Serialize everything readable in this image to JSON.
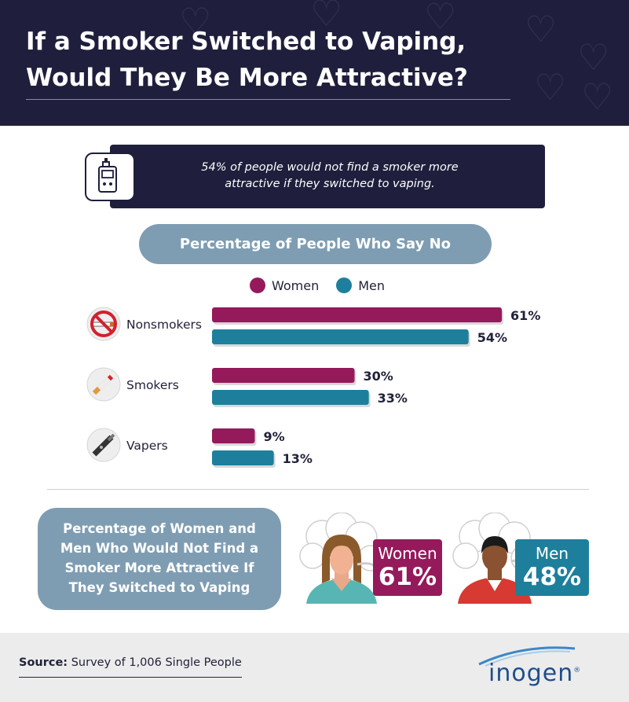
{
  "header": {
    "title_line1": "If a Smoker Switched to Vaping,",
    "title_line2": "Would They Be More Attractive?"
  },
  "stat": {
    "line1": "54% of people would not find a smoker more",
    "line2": "attractive if they switched to vaping.",
    "icon": "vape-device-icon"
  },
  "chart_title": "Percentage of People Who Say No",
  "legend": {
    "women": "Women",
    "men": "Men"
  },
  "colors": {
    "women": "#951a5c",
    "men": "#1d7f9c",
    "navy": "#1f1f3d",
    "steel": "#7f9db2"
  },
  "chart_data": {
    "type": "bar",
    "orientation": "horizontal",
    "title": "Percentage of People Who Say No",
    "categories": [
      "Nonsmokers",
      "Smokers",
      "Vapers"
    ],
    "category_icons": [
      "no-smoking-icon",
      "cigarette-icon",
      "vape-pen-icon"
    ],
    "series": [
      {
        "name": "Women",
        "values": [
          61,
          30,
          9
        ]
      },
      {
        "name": "Men",
        "values": [
          54,
          33,
          13
        ]
      }
    ],
    "value_suffix": "%",
    "grid": false,
    "legend_position": "top"
  },
  "summary": {
    "line1": "Percentage of Women and",
    "line2": "Men Who Would Not Find a",
    "line3": "Smoker More Attractive If",
    "line4": "They Switched to Vaping",
    "women_label": "Women",
    "women_value": "61%",
    "men_label": "Men",
    "men_value": "48%"
  },
  "footer": {
    "source_label": "Source:",
    "source_text": "Survey of 1,006 Single People",
    "logo": "inogen",
    "logo_mark": "®"
  }
}
